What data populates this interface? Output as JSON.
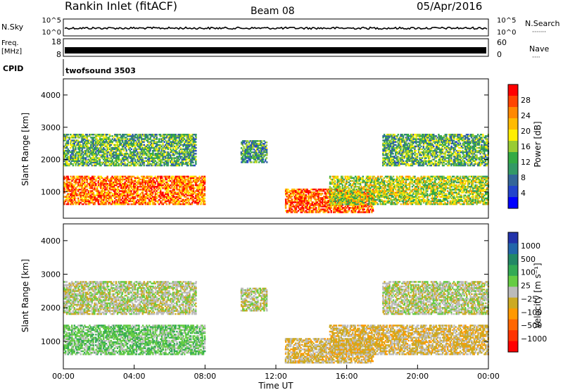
{
  "header": {
    "station": "Rankin Inlet (fitACF)",
    "beam": "Beam 08",
    "date": "05/Apr/2016"
  },
  "nsky_panel": {
    "left_label": "N.Sky",
    "right_label": "N.Search",
    "left_ticks": [
      "10^5",
      "10^0"
    ],
    "right_ticks": [
      "10^5",
      "10^0"
    ],
    "right_marker": "·······"
  },
  "freq_panel": {
    "left_label_line1": "Freq.",
    "left_label_line2": "[MHz]",
    "right_label": "Nave",
    "left_ticks": [
      "18",
      "8"
    ],
    "right_ticks": [
      "60",
      "0"
    ],
    "right_marker": "····"
  },
  "cpid_panel": {
    "label": "CPID",
    "value": "twofsound 3503"
  },
  "power_colorbar": {
    "title": "Power [dB]",
    "ticks": [
      "28",
      "24",
      "20",
      "16",
      "12",
      "8",
      "4"
    ],
    "colors": [
      "#ff0000",
      "#ff4400",
      "#ff8800",
      "#ffbb00",
      "#ffee00",
      "#99cc33",
      "#33aa44",
      "#339966",
      "#336699",
      "#2244cc",
      "#0000ff"
    ]
  },
  "velocity_colorbar": {
    "title": "Velocity [m s⁻¹]",
    "ticks": [
      "1000",
      "500",
      "100",
      "25",
      "−25",
      "−100",
      "−500",
      "−1000"
    ],
    "colors": [
      "#2233aa",
      "#2266aa",
      "#228866",
      "#33aa55",
      "#66cc44",
      "#bbbbbb",
      "#ccaa22",
      "#ff9900",
      "#ff6600",
      "#ff3300",
      "#ff0000"
    ]
  },
  "x_axis": {
    "title": "Time UT",
    "ticks": [
      "00:00",
      "04:00",
      "08:00",
      "12:00",
      "16:00",
      "20:00",
      "00:00"
    ]
  },
  "chart_data": [
    {
      "type": "heatmap",
      "title": "Power",
      "ylabel": "Slant Range [km]",
      "xlabel": "Time UT",
      "y_ticks": [
        1000,
        2000,
        3000,
        4000
      ],
      "ylim": [
        180,
        4500
      ],
      "xlim": [
        0,
        24
      ],
      "colorbar": "Power [dB]",
      "zlim": [
        0,
        30
      ],
      "echo_regions": [
        {
          "t_start": 0.0,
          "t_end": 8.0,
          "r_low": 600,
          "r_high": 1500,
          "power": 24
        },
        {
          "t_start": 0.0,
          "t_end": 7.5,
          "r_low": 1800,
          "r_high": 2800,
          "power": 12
        },
        {
          "t_start": 10.0,
          "t_end": 11.5,
          "r_low": 1900,
          "r_high": 2600,
          "power": 10
        },
        {
          "t_start": 12.5,
          "t_end": 17.5,
          "r_low": 350,
          "r_high": 1100,
          "power": 25
        },
        {
          "t_start": 15.0,
          "t_end": 24.0,
          "r_low": 600,
          "r_high": 1500,
          "power": 16
        },
        {
          "t_start": 18.0,
          "t_end": 24.0,
          "r_low": 1800,
          "r_high": 2800,
          "power": 12
        }
      ]
    },
    {
      "type": "heatmap",
      "title": "Velocity",
      "ylabel": "Slant Range [km]",
      "xlabel": "Time UT",
      "y_ticks": [
        1000,
        2000,
        3000,
        4000
      ],
      "ylim": [
        180,
        4500
      ],
      "xlim": [
        0,
        24
      ],
      "colorbar": "Velocity [m s⁻¹]",
      "zlim": [
        -1000,
        1000
      ],
      "echo_regions": [
        {
          "t_start": 0.0,
          "t_end": 8.0,
          "r_low": 600,
          "r_high": 1500,
          "velocity": 200
        },
        {
          "t_start": 0.0,
          "t_end": 7.5,
          "r_low": 1800,
          "r_high": 2800,
          "velocity": 0
        },
        {
          "t_start": 10.0,
          "t_end": 11.5,
          "r_low": 1900,
          "r_high": 2600,
          "velocity": 0
        },
        {
          "t_start": 12.5,
          "t_end": 17.5,
          "r_low": 350,
          "r_high": 1100,
          "velocity": -150
        },
        {
          "t_start": 15.0,
          "t_end": 24.0,
          "r_low": 600,
          "r_high": 1500,
          "velocity": -150
        },
        {
          "t_start": 18.0,
          "t_end": 24.0,
          "r_low": 1800,
          "r_high": 2800,
          "velocity": 0
        }
      ]
    }
  ]
}
